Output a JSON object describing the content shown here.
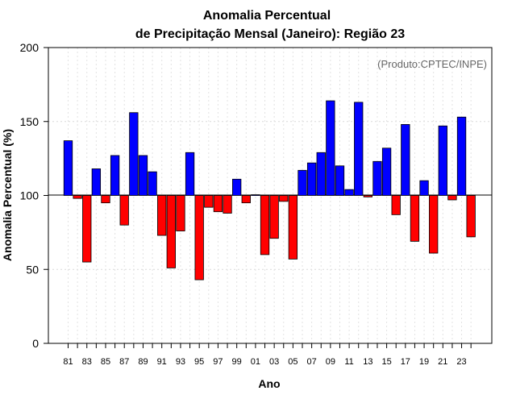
{
  "chart_data": {
    "type": "bar",
    "title_line1": "Anomalia Percentual",
    "title_line2": "de Precipitação Mensal (Janeiro): Região 23",
    "xlabel": "Ano",
    "ylabel": "Anomalia Percentual (%)",
    "source": "(Produto:CPTEC/INPE)",
    "ylim": [
      0,
      200
    ],
    "yticks": [
      0,
      50,
      100,
      150,
      200
    ],
    "baseline": 100,
    "colors": {
      "above": "#0000ff",
      "below": "#ff0000",
      "outline": "#000000"
    },
    "categories": [
      "81",
      "82",
      "83",
      "84",
      "85",
      "86",
      "87",
      "88",
      "89",
      "90",
      "91",
      "92",
      "93",
      "94",
      "95",
      "96",
      "97",
      "98",
      "99",
      "00",
      "01",
      "02",
      "03",
      "04",
      "05",
      "06",
      "07",
      "08",
      "09",
      "10",
      "11",
      "12",
      "13",
      "14",
      "15",
      "16",
      "17",
      "18",
      "19",
      "20",
      "21",
      "22",
      "23",
      "24"
    ],
    "xtick_labels": [
      "81",
      "83",
      "85",
      "87",
      "89",
      "91",
      "93",
      "95",
      "97",
      "99",
      "01",
      "03",
      "05",
      "07",
      "09",
      "11",
      "13",
      "15",
      "17",
      "19",
      "21",
      "23"
    ],
    "values": [
      137,
      98,
      55,
      118,
      95,
      127,
      80,
      156,
      127,
      116,
      73,
      51,
      76,
      129,
      43,
      92,
      89,
      88,
      111,
      95,
      100.5,
      60,
      71,
      96,
      57,
      117,
      122,
      129,
      164,
      120,
      104,
      163,
      99,
      123,
      132,
      87,
      148,
      69,
      110,
      61,
      147,
      97,
      153,
      72
    ]
  }
}
